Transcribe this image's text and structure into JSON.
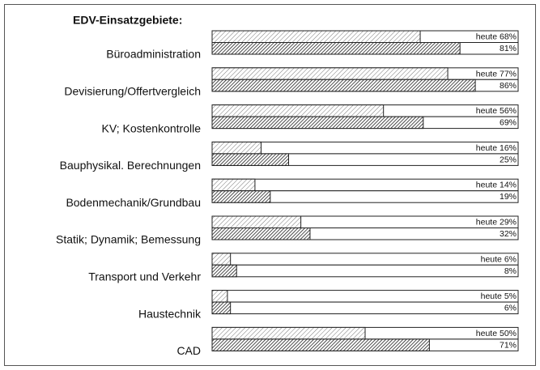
{
  "chart_data": {
    "type": "hbar-grouped",
    "title": "EDV-Einsatzgebiete:",
    "categories": [
      "Büroadministration",
      "Devisierung/Offertvergleich",
      "KV; Kostenkontrolle",
      "Bauphysikal. Berechnungen",
      "Bodenmechanik/Grundbau",
      "Statik; Dynamik; Bemessung",
      "Transport und Verkehr",
      "Haustechnik",
      "CAD"
    ],
    "series": [
      {
        "color": "#777777",
        "values": [
          68,
          77,
          56,
          16,
          14,
          29,
          6,
          5,
          50
        ],
        "value_labels": [
          "heute 68%",
          "heute 77%",
          "heute 56%",
          "heute 16%",
          "heute 14%",
          "heute 29%",
          "heute 6%",
          "heute 5%",
          "heute 50%"
        ]
      },
      {
        "color": "#222222",
        "values": [
          81,
          86,
          69,
          25,
          19,
          32,
          8,
          6,
          71
        ],
        "value_labels": [
          "81%",
          "86%",
          "69%",
          "25%",
          "19%",
          "32%",
          "8%",
          "6%",
          "71%"
        ]
      }
    ],
    "xlim": [
      0,
      100
    ]
  }
}
